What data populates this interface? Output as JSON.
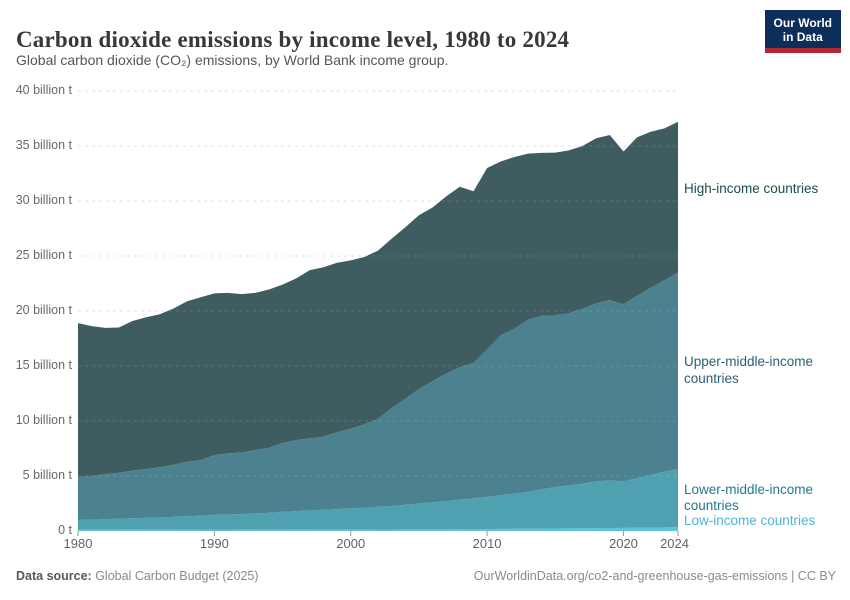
{
  "header": {
    "title": "Carbon dioxide emissions by income level, 1980 to 2024",
    "subtitle": "Global carbon dioxide (CO₂) emissions, by World Bank income group.",
    "logo": {
      "line1": "Our World",
      "line2": "in Data",
      "bg_color": "#0d2e5a",
      "accent_color": "#b12733"
    }
  },
  "footer": {
    "source_label": "Data source:",
    "source_value": " Global Carbon Budget (2025)",
    "credit": "OurWorldinData.org/co2-and-greenhouse-gas-emissions | CC BY"
  },
  "chart_data": {
    "type": "area",
    "stacked": true,
    "grid": "dashed",
    "ylim": [
      0,
      40
    ],
    "x": [
      1980,
      1981,
      1982,
      1983,
      1984,
      1985,
      1986,
      1987,
      1988,
      1989,
      1990,
      1991,
      1992,
      1993,
      1994,
      1995,
      1996,
      1997,
      1998,
      1999,
      2000,
      2001,
      2002,
      2003,
      2004,
      2005,
      2006,
      2007,
      2008,
      2009,
      2010,
      2011,
      2012,
      2013,
      2014,
      2015,
      2016,
      2017,
      2018,
      2019,
      2020,
      2021,
      2022,
      2023,
      2024
    ],
    "xticks": [
      1980,
      1990,
      2000,
      2010,
      2020,
      2024
    ],
    "yticks": [
      {
        "value": 0,
        "label": "0 t"
      },
      {
        "value": 5,
        "label": "5 billion t"
      },
      {
        "value": 10,
        "label": "10 billion t"
      },
      {
        "value": 15,
        "label": "15 billion t"
      },
      {
        "value": 20,
        "label": "20 billion t"
      },
      {
        "value": 25,
        "label": "25 billion t"
      },
      {
        "value": 30,
        "label": "30 billion t"
      },
      {
        "value": 35,
        "label": "35 billion t"
      },
      {
        "value": 40,
        "label": "40 billion t"
      }
    ],
    "unit": "billion tonnes",
    "series": [
      {
        "name": "Low-income countries",
        "color": "#59c3da",
        "label_color": "#4db6d3",
        "values": [
          0.12,
          0.12,
          0.12,
          0.12,
          0.13,
          0.13,
          0.13,
          0.13,
          0.14,
          0.14,
          0.14,
          0.14,
          0.13,
          0.13,
          0.13,
          0.13,
          0.13,
          0.13,
          0.13,
          0.13,
          0.13,
          0.13,
          0.14,
          0.14,
          0.15,
          0.15,
          0.16,
          0.16,
          0.17,
          0.18,
          0.18,
          0.19,
          0.2,
          0.21,
          0.22,
          0.23,
          0.24,
          0.25,
          0.26,
          0.27,
          0.28,
          0.3,
          0.31,
          0.33,
          0.35
        ]
      },
      {
        "name": "Lower-middle-income countries",
        "color": "#4fa1b1",
        "label_color": "#23798f",
        "values": [
          0.88,
          0.92,
          0.96,
          1.0,
          1.03,
          1.07,
          1.11,
          1.15,
          1.2,
          1.25,
          1.31,
          1.36,
          1.41,
          1.47,
          1.52,
          1.62,
          1.68,
          1.74,
          1.8,
          1.86,
          1.92,
          1.98,
          2.05,
          2.13,
          2.22,
          2.35,
          2.45,
          2.56,
          2.68,
          2.8,
          2.92,
          3.05,
          3.2,
          3.35,
          3.55,
          3.77,
          3.9,
          4.05,
          4.25,
          4.33,
          4.22,
          4.5,
          4.79,
          5.07,
          5.3
        ]
      },
      {
        "name": "Upper-middle-income countries",
        "color": "#4c8290",
        "label_color": "#2d5f73",
        "values": [
          3.9,
          3.99,
          4.08,
          4.18,
          4.33,
          4.43,
          4.56,
          4.75,
          4.95,
          5.06,
          5.45,
          5.55,
          5.6,
          5.75,
          5.9,
          6.25,
          6.45,
          6.55,
          6.65,
          7.0,
          7.25,
          7.6,
          8.0,
          8.9,
          9.65,
          10.4,
          11.0,
          11.6,
          12.05,
          12.3,
          13.4,
          14.55,
          15.0,
          15.65,
          15.8,
          15.6,
          15.66,
          15.9,
          16.2,
          16.4,
          16.1,
          16.6,
          17.0,
          17.4,
          17.85
        ]
      },
      {
        "name": "High-income countries",
        "color": "#3f5d60",
        "label_color": "#1c4b4f",
        "values": [
          14.0,
          13.6,
          13.3,
          13.2,
          13.6,
          13.8,
          13.9,
          14.2,
          14.6,
          14.8,
          14.7,
          14.6,
          14.4,
          14.3,
          14.4,
          14.4,
          14.7,
          15.3,
          15.4,
          15.4,
          15.3,
          15.2,
          15.3,
          15.4,
          15.6,
          15.8,
          15.8,
          16.1,
          16.4,
          15.6,
          16.5,
          15.8,
          15.6,
          15.1,
          14.8,
          14.8,
          14.8,
          14.8,
          15.0,
          15.0,
          13.9,
          14.4,
          14.2,
          13.8,
          13.7
        ]
      }
    ]
  }
}
